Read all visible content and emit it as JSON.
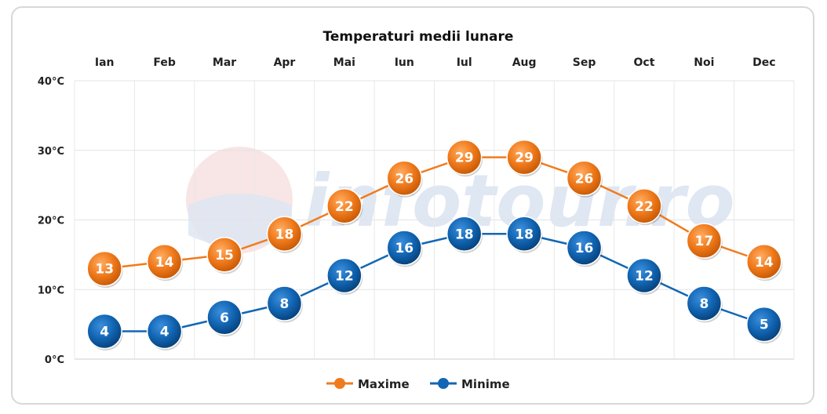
{
  "chart_data": {
    "type": "line",
    "title": "Temperaturi medii lunare",
    "categories": [
      "Ian",
      "Feb",
      "Mar",
      "Apr",
      "Mai",
      "Iun",
      "Iul",
      "Aug",
      "Sep",
      "Oct",
      "Noi",
      "Dec"
    ],
    "yticks": [
      "0°C",
      "10°C",
      "20°C",
      "30°C",
      "40°C"
    ],
    "ylim": [
      0,
      40
    ],
    "grid": true,
    "legend_position": "bottom",
    "x_axis_position": "top",
    "series": [
      {
        "name": "Maxime",
        "color": "#f07b1d",
        "values": [
          13,
          14,
          15,
          18,
          22,
          26,
          29,
          29,
          26,
          22,
          17,
          14
        ],
        "labels": [
          "13",
          "14",
          "15",
          "18",
          "22",
          "26",
          "29",
          "29",
          "26",
          "22",
          "17",
          "14"
        ]
      },
      {
        "name": "Minime",
        "color": "#1266b4",
        "values": [
          4,
          4,
          6,
          8,
          12,
          16,
          18,
          18,
          16,
          12,
          8,
          5
        ],
        "labels": [
          "4",
          "4",
          "6",
          "8",
          "12",
          "16",
          "18",
          "18",
          "16",
          "12",
          "8",
          "5"
        ]
      }
    ]
  },
  "watermark": {
    "text": "infotour.ro"
  }
}
